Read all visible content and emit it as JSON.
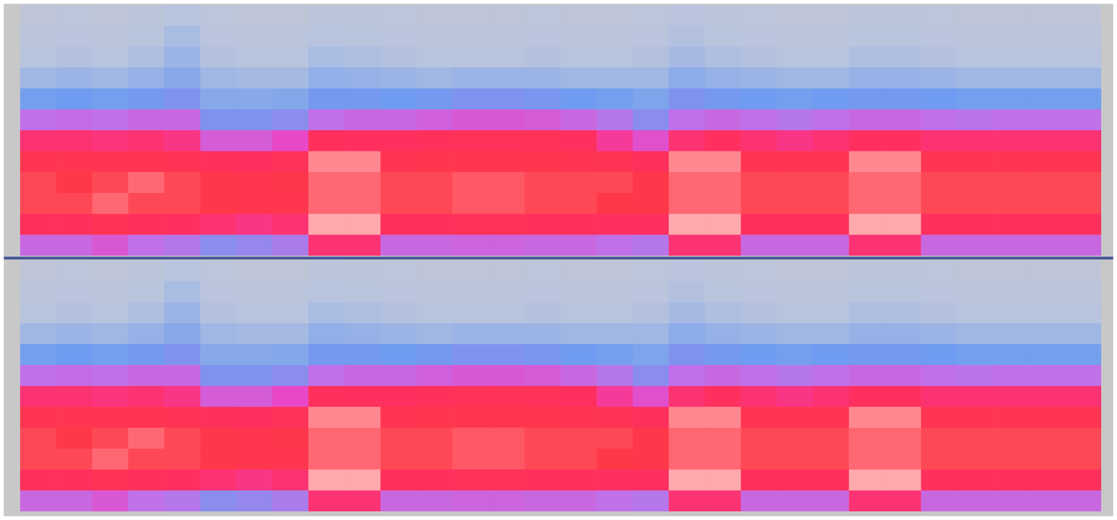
{
  "chart_data": [
    {
      "type": "heatmap",
      "tick_labels": false,
      "zlim": [
        0,
        100
      ],
      "cells": [
        [
          14,
          15,
          14,
          16,
          20,
          15,
          14,
          14,
          17,
          16,
          15,
          14,
          14,
          14,
          15,
          14,
          14,
          15,
          18,
          16,
          15,
          14,
          14,
          16,
          16,
          15,
          14,
          14,
          14,
          14
        ],
        [
          17,
          18,
          17,
          19,
          23,
          18,
          17,
          17,
          20,
          19,
          18,
          17,
          17,
          17,
          18,
          17,
          17,
          18,
          21,
          19,
          18,
          17,
          17,
          19,
          19,
          18,
          17,
          17,
          17,
          17
        ],
        [
          20,
          21,
          20,
          22,
          26,
          21,
          20,
          20,
          23,
          22,
          21,
          20,
          20,
          20,
          21,
          20,
          20,
          21,
          24,
          22,
          21,
          20,
          20,
          22,
          22,
          21,
          20,
          20,
          20,
          20
        ],
        [
          25,
          26,
          25,
          27,
          30,
          25,
          24,
          24,
          28,
          27,
          26,
          25,
          26,
          26,
          26,
          25,
          25,
          25,
          29,
          27,
          26,
          25,
          25,
          27,
          27,
          26,
          25,
          25,
          25,
          25
        ],
        [
          34,
          35,
          34,
          36,
          38,
          30,
          30,
          31,
          36,
          36,
          35,
          36,
          38,
          38,
          37,
          35,
          34,
          32,
          38,
          36,
          35,
          34,
          35,
          36,
          36,
          35,
          34,
          34,
          34,
          34
        ],
        [
          50,
          51,
          50,
          52,
          52,
          38,
          38,
          40,
          50,
          52,
          52,
          54,
          56,
          56,
          55,
          52,
          48,
          40,
          50,
          52,
          50,
          48,
          50,
          52,
          52,
          50,
          49,
          50,
          50,
          50
        ],
        [
          70,
          70,
          69,
          70,
          68,
          55,
          55,
          60,
          74,
          72,
          72,
          74,
          76,
          76,
          75,
          72,
          66,
          58,
          70,
          72,
          70,
          68,
          70,
          72,
          72,
          70,
          70,
          70,
          70,
          70
        ],
        [
          80,
          80,
          80,
          80,
          78,
          74,
          72,
          76,
          90,
          90,
          80,
          82,
          82,
          82,
          82,
          80,
          78,
          74,
          90,
          90,
          80,
          80,
          80,
          90,
          90,
          80,
          80,
          80,
          80,
          80
        ],
        [
          86,
          85,
          86,
          88,
          86,
          84,
          82,
          84,
          88,
          88,
          86,
          86,
          87,
          87,
          86,
          86,
          86,
          84,
          88,
          88,
          86,
          86,
          86,
          88,
          88,
          86,
          86,
          86,
          86,
          86
        ],
        [
          86,
          86,
          88,
          86,
          86,
          84,
          82,
          82,
          88,
          88,
          86,
          86,
          87,
          87,
          86,
          86,
          85,
          84,
          88,
          88,
          86,
          86,
          86,
          88,
          88,
          86,
          86,
          86,
          86,
          86
        ],
        [
          74,
          74,
          78,
          74,
          72,
          70,
          68,
          70,
          92,
          92,
          74,
          74,
          75,
          75,
          74,
          74,
          72,
          72,
          92,
          92,
          74,
          74,
          74,
          92,
          92,
          74,
          74,
          74,
          74,
          74
        ],
        [
          52,
          52,
          56,
          50,
          48,
          40,
          42,
          46,
          70,
          70,
          52,
          52,
          53,
          53,
          52,
          52,
          50,
          48,
          70,
          70,
          52,
          52,
          52,
          70,
          70,
          52,
          52,
          52,
          52,
          52
        ]
      ]
    },
    {
      "type": "heatmap",
      "tick_labels": false,
      "zlim": [
        0,
        100
      ],
      "cells": [
        [
          14,
          15,
          14,
          16,
          20,
          15,
          14,
          14,
          17,
          16,
          15,
          14,
          14,
          14,
          15,
          14,
          14,
          15,
          18,
          16,
          15,
          14,
          14,
          16,
          16,
          15,
          14,
          14,
          14,
          14
        ],
        [
          17,
          18,
          17,
          19,
          23,
          18,
          17,
          17,
          20,
          19,
          18,
          17,
          17,
          17,
          18,
          17,
          17,
          18,
          21,
          19,
          18,
          17,
          17,
          19,
          19,
          18,
          17,
          17,
          17,
          17
        ],
        [
          20,
          21,
          20,
          22,
          26,
          21,
          20,
          20,
          23,
          22,
          21,
          20,
          20,
          20,
          21,
          20,
          20,
          21,
          24,
          22,
          21,
          20,
          20,
          22,
          22,
          21,
          20,
          20,
          20,
          20
        ],
        [
          25,
          26,
          25,
          27,
          30,
          25,
          24,
          24,
          28,
          27,
          26,
          25,
          26,
          26,
          26,
          25,
          25,
          25,
          29,
          27,
          26,
          25,
          25,
          27,
          27,
          26,
          25,
          25,
          25,
          25
        ],
        [
          34,
          35,
          34,
          36,
          38,
          30,
          30,
          31,
          36,
          36,
          35,
          36,
          38,
          38,
          37,
          35,
          34,
          32,
          38,
          36,
          35,
          34,
          35,
          36,
          36,
          35,
          34,
          34,
          34,
          34
        ],
        [
          50,
          51,
          50,
          52,
          52,
          38,
          38,
          40,
          50,
          52,
          52,
          54,
          56,
          56,
          55,
          52,
          48,
          40,
          50,
          52,
          50,
          48,
          50,
          52,
          52,
          50,
          49,
          50,
          50,
          50
        ],
        [
          70,
          70,
          69,
          70,
          68,
          55,
          55,
          60,
          74,
          72,
          72,
          74,
          76,
          76,
          75,
          72,
          66,
          58,
          70,
          72,
          70,
          68,
          70,
          72,
          72,
          70,
          70,
          70,
          70,
          70
        ],
        [
          80,
          80,
          80,
          80,
          78,
          74,
          72,
          76,
          90,
          90,
          80,
          82,
          82,
          82,
          82,
          80,
          78,
          74,
          90,
          90,
          80,
          80,
          80,
          90,
          90,
          80,
          80,
          80,
          80,
          80
        ],
        [
          86,
          85,
          86,
          88,
          86,
          84,
          82,
          84,
          88,
          88,
          86,
          86,
          87,
          87,
          86,
          86,
          86,
          84,
          88,
          88,
          86,
          86,
          86,
          88,
          88,
          86,
          86,
          86,
          86,
          86
        ],
        [
          86,
          86,
          88,
          86,
          86,
          84,
          82,
          82,
          88,
          88,
          86,
          86,
          87,
          87,
          86,
          86,
          85,
          84,
          88,
          88,
          86,
          86,
          86,
          88,
          88,
          86,
          86,
          86,
          86,
          86
        ],
        [
          74,
          74,
          78,
          74,
          72,
          70,
          68,
          70,
          92,
          92,
          74,
          74,
          75,
          75,
          74,
          74,
          72,
          72,
          92,
          92,
          74,
          74,
          74,
          92,
          92,
          74,
          74,
          74,
          74,
          74
        ],
        [
          52,
          52,
          56,
          50,
          48,
          40,
          42,
          46,
          70,
          70,
          52,
          52,
          53,
          53,
          52,
          52,
          50,
          48,
          70,
          70,
          52,
          52,
          52,
          70,
          70,
          52,
          52,
          52,
          52,
          52
        ]
      ]
    }
  ]
}
